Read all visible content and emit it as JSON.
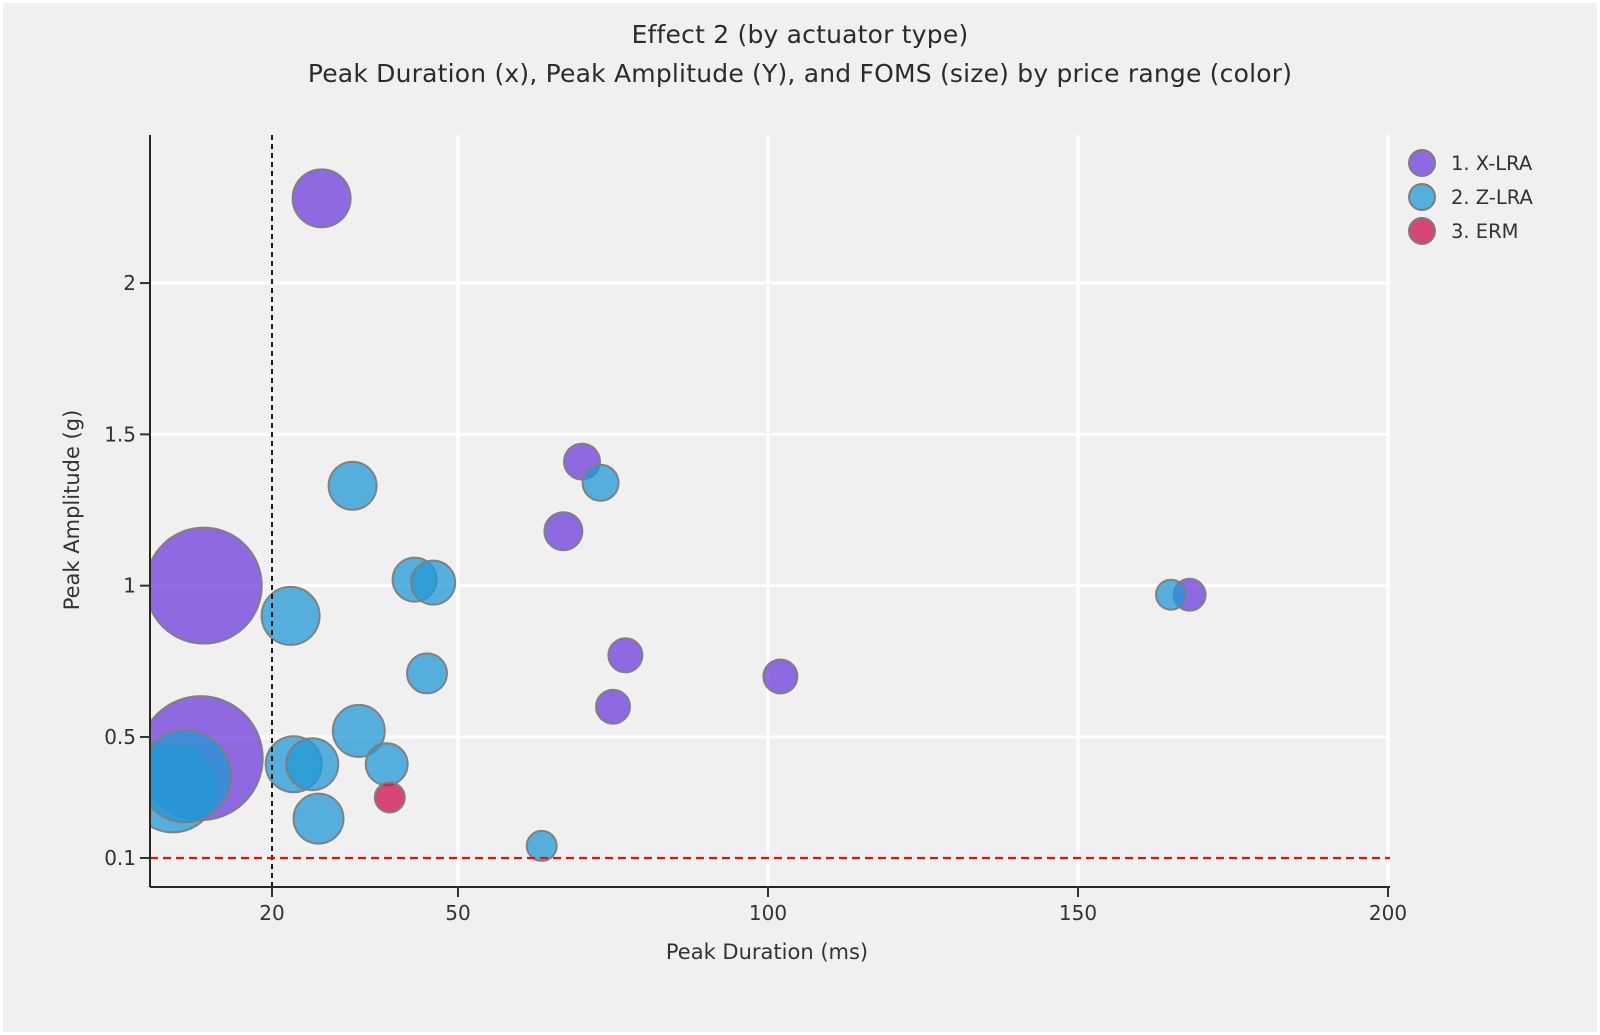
{
  "window": {
    "background": "#f0f0f0"
  },
  "chart_data": {
    "type": "scatter",
    "subtype": "bubble",
    "title": "Effect 2 (by actuator type)",
    "subtitle": "Peak Duration (x), Peak Amplitude (Y), and FOMS (size) by price range (color)",
    "xlabel": "Peak Duration (ms)",
    "ylabel": "Peak Amplitude (g)",
    "x_ticks": [
      "20",
      "50",
      "100",
      "150",
      "200"
    ],
    "x_tick_values": [
      20,
      50,
      100,
      150,
      200
    ],
    "y_ticks": [
      "2",
      "1.5",
      "1",
      "0.5",
      "0.1"
    ],
    "y_tick_values": [
      2,
      1.5,
      1,
      0.5,
      0.1
    ],
    "x_grid_values": [
      50,
      100,
      150,
      200
    ],
    "y_grid_values": [
      0.5,
      1,
      1.5,
      2
    ],
    "xlim": [
      0,
      200.5
    ],
    "ylim": [
      0,
      2.49
    ],
    "grid": true,
    "legend_position": "top-right-outside",
    "size_note": "point format [x_ms, y_g, bubble_radius_px]; radius encodes FOMS",
    "reference_lines": [
      {
        "orientation": "vertical",
        "x": 20,
        "style": "dashed",
        "color": "#1a1a1a"
      },
      {
        "orientation": "horizontal",
        "y": 0.1,
        "style": "dashed",
        "color": "#e3120b"
      }
    ],
    "colors": {
      "stroke": "#7d7d7d",
      "marker_opacity": 0.75,
      "grid": "#ffffff",
      "background": "#f0f0f0",
      "axis": "#262626",
      "tick_text": "#333333"
    },
    "series": [
      {
        "name": "1. X-LRA",
        "color": "#6E3CDC",
        "points": [
          [
            28,
            2.28,
            29
          ],
          [
            9,
            1.0,
            58
          ],
          [
            8.5,
            0.43,
            62
          ],
          [
            70,
            1.41,
            18
          ],
          [
            67,
            1.18,
            19
          ],
          [
            77,
            0.77,
            17
          ],
          [
            75,
            0.6,
            17
          ],
          [
            102,
            0.7,
            17
          ],
          [
            168,
            0.97,
            16
          ]
        ]
      },
      {
        "name": "2. Z-LRA",
        "color": "#2398D5",
        "points": [
          [
            33,
            1.33,
            24
          ],
          [
            73,
            1.34,
            18
          ],
          [
            23,
            0.9,
            29
          ],
          [
            43,
            1.02,
            22
          ],
          [
            46,
            1.01,
            22
          ],
          [
            45,
            0.71,
            20
          ],
          [
            34,
            0.52,
            26
          ],
          [
            23.5,
            0.41,
            28
          ],
          [
            26.5,
            0.41,
            26
          ],
          [
            38.5,
            0.41,
            21
          ],
          [
            27.5,
            0.23,
            25
          ],
          [
            63.5,
            0.14,
            15
          ],
          [
            4,
            0.33,
            44
          ],
          [
            6,
            0.37,
            46
          ],
          [
            165,
            0.97,
            15
          ]
        ]
      },
      {
        "name": "3. ERM",
        "color": "#CD0D50",
        "points": [
          [
            39,
            0.3,
            15
          ]
        ]
      }
    ]
  }
}
